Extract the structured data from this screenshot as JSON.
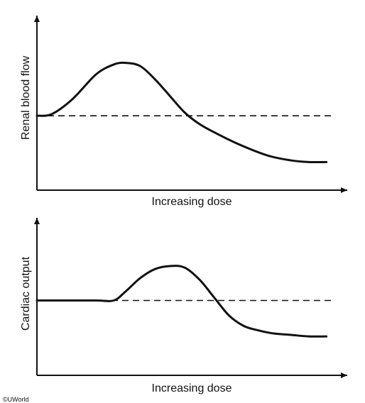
{
  "copyright": "©UWorld",
  "chart_data": [
    {
      "type": "line",
      "title": "",
      "xlabel": "Increasing dose",
      "ylabel": "Renal blood flow",
      "xlim": [
        0,
        1
      ],
      "ylim": [
        0,
        1
      ],
      "baseline": 0.45,
      "grid": false,
      "series": [
        {
          "x": [
            0.0,
            0.05,
            0.12,
            0.2,
            0.26,
            0.3,
            0.35,
            0.4,
            0.45,
            0.5,
            0.55,
            0.6,
            0.68,
            0.78,
            0.86,
            0.92,
            0.98
          ],
          "y": [
            0.45,
            0.46,
            0.55,
            0.7,
            0.76,
            0.77,
            0.75,
            0.67,
            0.57,
            0.47,
            0.4,
            0.35,
            0.28,
            0.21,
            0.18,
            0.17,
            0.17
          ]
        }
      ]
    },
    {
      "type": "line",
      "title": "",
      "xlabel": "Increasing dose",
      "ylabel": "Cardiac output",
      "xlim": [
        0,
        1
      ],
      "ylim": [
        0,
        1
      ],
      "baseline": 0.5,
      "grid": false,
      "series": [
        {
          "x": [
            0.0,
            0.1,
            0.2,
            0.26,
            0.3,
            0.35,
            0.4,
            0.45,
            0.5,
            0.55,
            0.6,
            0.65,
            0.7,
            0.75,
            0.8,
            0.86,
            0.92,
            0.98
          ],
          "y": [
            0.5,
            0.5,
            0.5,
            0.5,
            0.56,
            0.65,
            0.71,
            0.73,
            0.72,
            0.64,
            0.52,
            0.4,
            0.33,
            0.3,
            0.28,
            0.27,
            0.26,
            0.26
          ]
        }
      ]
    }
  ]
}
